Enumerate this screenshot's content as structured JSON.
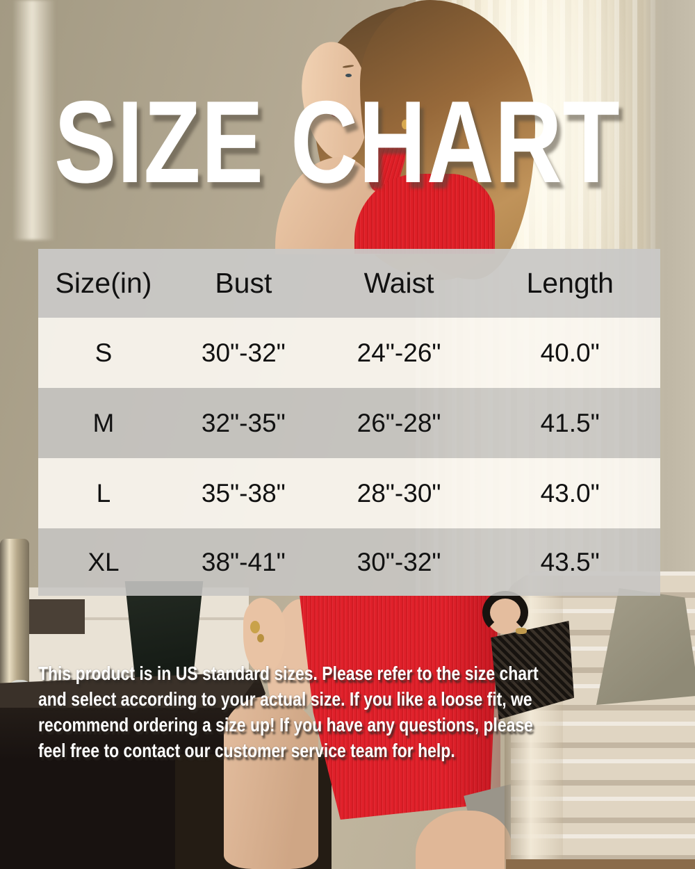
{
  "title": "SIZE CHART",
  "chart_data": {
    "type": "table",
    "title": "SIZE CHART",
    "columns": [
      "Size(in)",
      "Bust",
      "Waist",
      "Length"
    ],
    "rows": [
      [
        "S",
        "30\"-32\"",
        "24\"-26\"",
        "40.0\""
      ],
      [
        "M",
        "32\"-35\"",
        "26\"-28\"",
        "41.5\""
      ],
      [
        "L",
        "35\"-38\"",
        "28\"-30\"",
        "43.0\""
      ],
      [
        "XL",
        "38\"-41\"",
        "30\"-32\"",
        "43.5\""
      ]
    ],
    "units": "inches",
    "layout": "header row gray, body rows alternating light/gray, semi-transparent over photo"
  },
  "footnote": {
    "lines": [
      "This product is in US standard sizes. Please refer to the size chart",
      "and select according to your actual size. If you like a loose fit, we",
      "recommend ordering a size up! If you have any questions, please",
      "feel free to contact our customer service team for help."
    ]
  },
  "colors": {
    "dress_red": "#e0202a",
    "table_header_bg": "#c9c8c6",
    "table_row_light": "#faf6f0",
    "table_row_gray": "#c6c5c3",
    "table_text": "#111111",
    "title_text": "#ffffff",
    "wall_beige": "#b3a892",
    "curtain_cream": "#fbf3de",
    "sofa_cream": "#e0d5c2"
  }
}
